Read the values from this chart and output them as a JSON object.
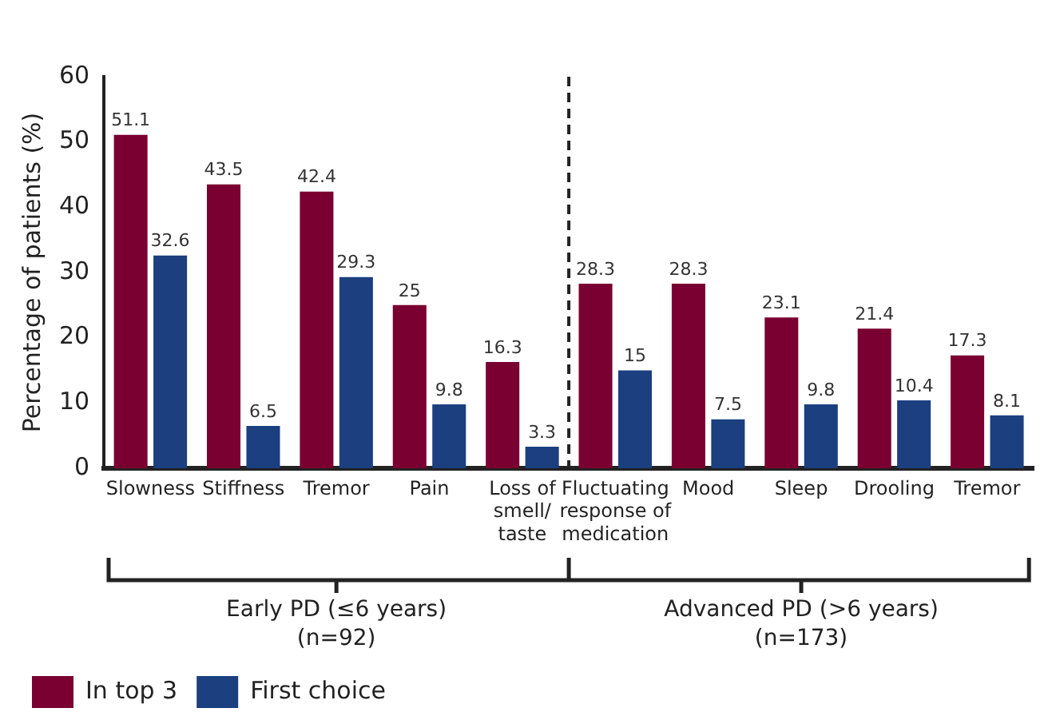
{
  "chart_data": {
    "type": "bar",
    "ylabel": "Percentage of patients (%)",
    "categories": [
      "Slowness",
      "Stiffness",
      "Tremor",
      "Pain",
      "Loss of smell/taste",
      "Fluctuating response of medication",
      "Mood",
      "Sleep",
      "Drooling",
      "Tremor"
    ],
    "series": [
      {
        "name": "In top 3",
        "color": "#7a0032",
        "values": [
          51.1,
          43.5,
          42.4,
          25,
          16.3,
          28.3,
          28.3,
          23.1,
          21.4,
          17.3
        ]
      },
      {
        "name": "First choice",
        "color": "#1b3f7f",
        "values": [
          32.6,
          6.5,
          29.3,
          9.8,
          3.3,
          15,
          7.5,
          9.8,
          10.4,
          8.1
        ]
      }
    ],
    "ylim": [
      0,
      60
    ],
    "yticks": [
      0,
      10,
      20,
      30,
      40,
      50,
      60
    ],
    "grid": false,
    "legend": "bottom left",
    "data_labels": true,
    "annotations": [
      "Early PD (≤6 years)\n(n=92)",
      "Advanced PD (>6 years)\n(n=173)"
    ]
  }
}
